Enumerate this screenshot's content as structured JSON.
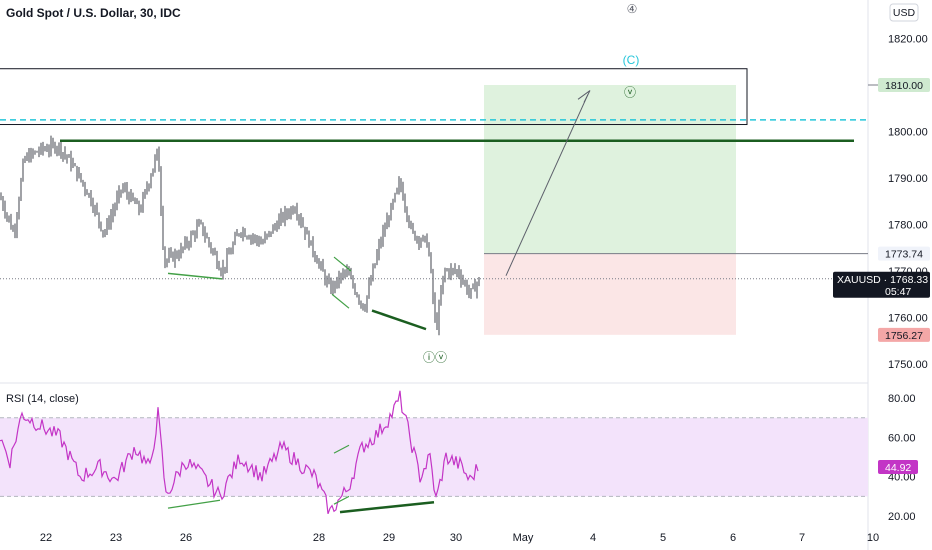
{
  "header": {
    "title": "Gold Spot / U.S. Dollar, 30, IDC"
  },
  "currency_badge": "USD",
  "rsi_label": "RSI (14, close)",
  "colors": {
    "candle": "#131722",
    "dark_green": "#1b5e20",
    "light_green": "#43a047",
    "cyan": "#26c6da",
    "target_zone": "#dff2de",
    "stop_zone": "#fbe6e6",
    "rsi_band": "#f3e3fb",
    "rsi_line": "#c335c6",
    "price_tag": "#131722",
    "stop_tag": "#f4a7a7",
    "target_tag": "#cfead0",
    "rsi_tag": "#c335c6"
  },
  "chart_data": [
    {
      "type": "candlestick",
      "title": "Gold Spot / U.S. Dollar, 30, IDC",
      "currency": "USD",
      "symbol": "XAUUSD",
      "last_price": "1768.33",
      "countdown": "05:47",
      "x_ticks": [
        "22",
        "23",
        "26",
        "28",
        "29",
        "30",
        "May",
        "4",
        "5",
        "6",
        "7",
        "10"
      ],
      "y_ticks": [
        "1750.00",
        "1760.00",
        "1770.00",
        "1780.00",
        "1790.00",
        "1800.00",
        "1820.00"
      ],
      "ylim": [
        1746,
        1827
      ],
      "key_points": [
        {
          "label": "22 open",
          "y": 1786
        },
        {
          "label": "22 high",
          "y": 1797
        },
        {
          "label": "23 low",
          "y": 1777
        },
        {
          "label": "23 spike",
          "y": 1796
        },
        {
          "label": "26 low",
          "y": 1770
        },
        {
          "label": "28 high",
          "y": 1785
        },
        {
          "label": "28 low",
          "y": 1763
        },
        {
          "label": "29 high",
          "y": 1790
        },
        {
          "label": "29 low",
          "y": 1756
        },
        {
          "label": "30 last",
          "y": 1768.33
        }
      ],
      "price_tags": [
        {
          "text": "1810.00",
          "kind": "target"
        },
        {
          "text": "1773.74",
          "kind": "entry"
        },
        {
          "text": "1756.27",
          "kind": "stop"
        }
      ],
      "levels": {
        "resistance_solid": 1798,
        "resistance_dashed": 1802.5,
        "box_top": 1813.5,
        "box_bottom": 1801.5
      },
      "position": {
        "entry": 1773.74,
        "target": 1810.0,
        "stop": 1756.27
      },
      "wave_labels": [
        {
          "text": "④",
          "price": 1825.5
        },
        {
          "text": "(C)",
          "price": 1814.5
        },
        {
          "text": "ⓥ",
          "price": 1807.5
        },
        {
          "text": "ⓘⓥ",
          "price": 1750.5
        }
      ]
    },
    {
      "type": "line",
      "title": "RSI (14, close)",
      "y_ticks": [
        "20.00",
        "40.00",
        "60.00",
        "80.00"
      ],
      "ylim": [
        15,
        86
      ],
      "band": [
        30,
        70
      ],
      "last_value": "44.92",
      "key_points": [
        {
          "label": "22 start",
          "y": 60
        },
        {
          "label": "22 high",
          "y": 72
        },
        {
          "label": "23 low",
          "y": 35
        },
        {
          "label": "23 spike",
          "y": 72
        },
        {
          "label": "26 low",
          "y": 30
        },
        {
          "label": "28 low",
          "y": 22
        },
        {
          "label": "29 high",
          "y": 80
        },
        {
          "label": "29 low",
          "y": 28
        },
        {
          "label": "30 last",
          "y": 44.92
        }
      ]
    }
  ]
}
